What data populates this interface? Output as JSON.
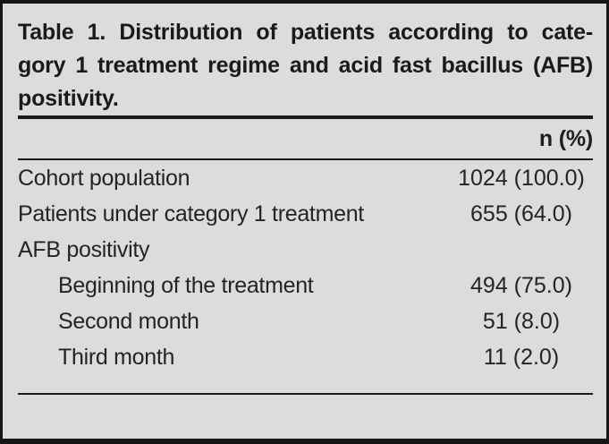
{
  "table": {
    "title_lines": [
      "Table 1. Distribution of patients according to cate-",
      "gory 1 treatment regime and acid fast bacillus (AFB)",
      "positivity."
    ],
    "header": {
      "value_col": "n (%)"
    },
    "rows": [
      {
        "label": "Cohort population",
        "value": "1024 (100.0)"
      },
      {
        "label": "Patients under category 1 treatment",
        "value": "655 (64.0)"
      },
      {
        "label": "AFB positivity",
        "value": ""
      },
      {
        "label": "Beginning of the treatment",
        "value": "494 (75.0)"
      },
      {
        "label": "Second month",
        "value": "51 (8.0)"
      },
      {
        "label": "Third month",
        "value": "11 (2.0)"
      }
    ],
    "colors": {
      "background": "#dcdcdc",
      "border": "#161616",
      "rule": "#1a1a1a",
      "text": "#242424"
    }
  },
  "chart_data": {
    "type": "table",
    "title": "Table 1. Distribution of patients according to category 1 treatment regime and acid fast bacillus (AFB) positivity.",
    "columns": [
      "",
      "n (%)"
    ],
    "rows": [
      [
        "Cohort population",
        "1024 (100.0)"
      ],
      [
        "Patients under category 1 treatment",
        "655 (64.0)"
      ],
      [
        "AFB positivity",
        ""
      ],
      [
        "Beginning of the treatment",
        "494 (75.0)"
      ],
      [
        "Second month",
        "51 (8.0)"
      ],
      [
        "Third month",
        "11 (2.0)"
      ]
    ]
  }
}
